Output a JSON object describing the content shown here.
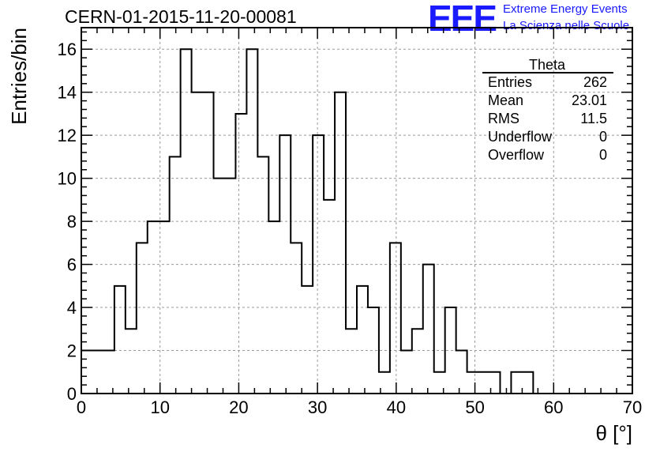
{
  "header": {
    "title": "CERN-01-2015-11-20-00081",
    "logo_text": "EEE",
    "logo_line1": "Extreme Energy Events",
    "logo_line2": "La Scienza nelle Scuole",
    "logo_color": "#1a1aff"
  },
  "chart_data": {
    "type": "bar",
    "histogram": true,
    "xlabel": "θ [°]",
    "ylabel": "Entries/bin",
    "xlim": [
      0,
      70
    ],
    "ylim": [
      0,
      17
    ],
    "x_ticks": [
      0,
      10,
      20,
      30,
      40,
      50,
      60,
      70
    ],
    "y_ticks": [
      0,
      2,
      4,
      6,
      8,
      10,
      12,
      14,
      16
    ],
    "grid": true,
    "bin_edges": [
      0,
      1.4,
      2.8,
      4.2,
      5.6,
      7,
      8.4,
      9.8,
      11.2,
      12.6,
      14,
      15.4,
      16.8,
      18.2,
      19.6,
      21,
      22.4,
      23.8,
      25.2,
      26.6,
      28,
      29.4,
      30.8,
      32.2,
      33.6,
      35,
      36.4,
      37.8,
      39.2,
      40.6,
      42,
      43.4,
      44.8,
      46.2,
      47.6,
      49,
      50.4,
      51.8,
      53.2,
      54.6,
      56,
      57.4,
      58.8,
      60.2,
      61.6,
      63,
      64.4,
      65.8,
      67.2,
      68.6,
      70
    ],
    "values": [
      2,
      2,
      2,
      5,
      3,
      7,
      8,
      8,
      11,
      16,
      14,
      14,
      10,
      10,
      13,
      16,
      11,
      8,
      12,
      7,
      5,
      12,
      9,
      14,
      3,
      5,
      4,
      1,
      7,
      2,
      3,
      6,
      1,
      4,
      2,
      1,
      1,
      1,
      0,
      1,
      1,
      0,
      0,
      0,
      0,
      0,
      0,
      0,
      0,
      0
    ],
    "line_color": "#000000",
    "stats_box": {
      "title": "Theta",
      "position": "top-right",
      "rows": [
        {
          "label": "Entries",
          "value": "262"
        },
        {
          "label": "Mean",
          "value": "23.01"
        },
        {
          "label": "RMS",
          "value": "11.5"
        },
        {
          "label": "Underflow",
          "value": "0"
        },
        {
          "label": "Overflow",
          "value": "0"
        }
      ]
    }
  }
}
